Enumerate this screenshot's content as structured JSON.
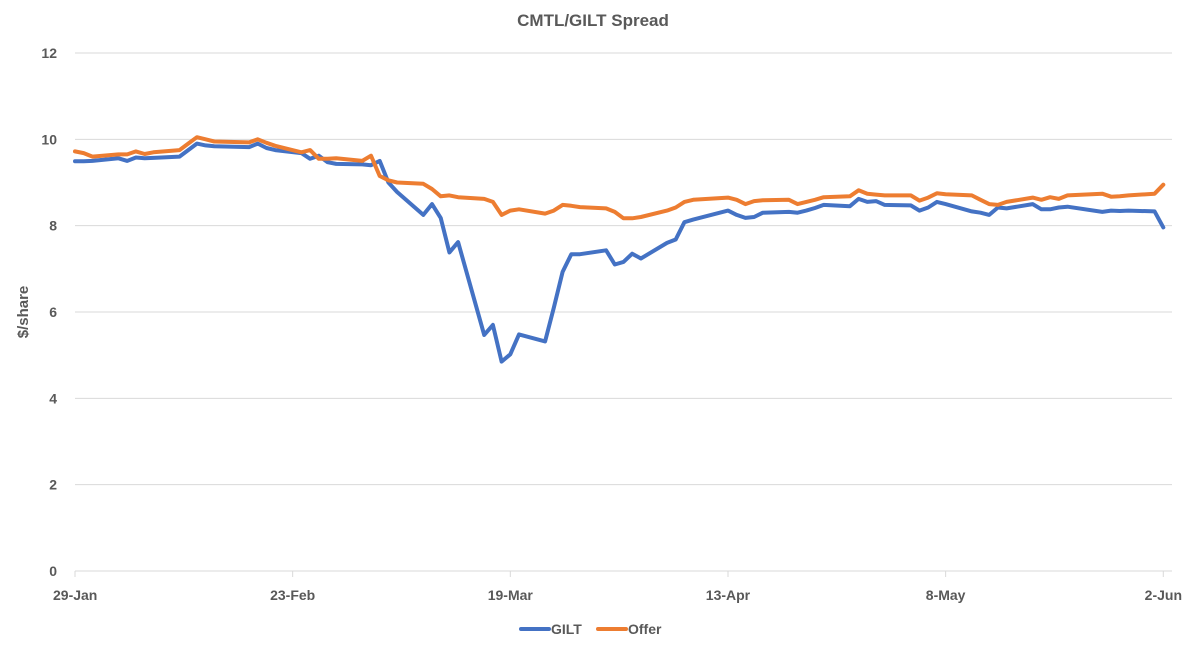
{
  "chart_data": {
    "type": "line",
    "title": "CMTL/GILT Spread",
    "xlabel": "",
    "ylabel": "$/share",
    "ylim": [
      0,
      12
    ],
    "yticks": [
      0,
      2,
      4,
      6,
      8,
      10,
      12
    ],
    "xticks": [
      "29-Jan",
      "23-Feb",
      "19-Mar",
      "13-Apr",
      "8-May",
      "2-Jun"
    ],
    "grid": "horizontal",
    "legend_position": "bottom",
    "colors": {
      "GILT": "#4472C4",
      "Offer": "#ED7D31",
      "grid": "#D9D9D9",
      "text": "#595959"
    },
    "series": [
      {
        "name": "GILT",
        "color": "#4472C4",
        "x": [
          "29-Jan",
          "30-Jan",
          "31-Jan",
          "3-Feb",
          "4-Feb",
          "5-Feb",
          "6-Feb",
          "7-Feb",
          "10-Feb",
          "11-Feb",
          "12-Feb",
          "13-Feb",
          "14-Feb",
          "18-Feb",
          "19-Feb",
          "20-Feb",
          "21-Feb",
          "24-Feb",
          "25-Feb",
          "26-Feb",
          "27-Feb",
          "28-Feb",
          "2-Mar",
          "3-Mar",
          "4-Mar",
          "5-Mar",
          "6-Mar",
          "9-Mar",
          "10-Mar",
          "11-Mar",
          "12-Mar",
          "13-Mar",
          "16-Mar",
          "17-Mar",
          "18-Mar",
          "19-Mar",
          "20-Mar",
          "23-Mar",
          "24-Mar",
          "25-Mar",
          "26-Mar",
          "27-Mar",
          "30-Mar",
          "31-Mar",
          "1-Apr",
          "2-Apr",
          "3-Apr",
          "6-Apr",
          "7-Apr",
          "8-Apr",
          "9-Apr",
          "13-Apr",
          "14-Apr",
          "15-Apr",
          "16-Apr",
          "17-Apr",
          "20-Apr",
          "21-Apr",
          "22-Apr",
          "23-Apr",
          "24-Apr",
          "27-Apr",
          "28-Apr",
          "29-Apr",
          "30-Apr",
          "1-May",
          "4-May",
          "5-May",
          "6-May",
          "7-May",
          "8-May",
          "11-May",
          "12-May",
          "13-May",
          "14-May",
          "15-May",
          "18-May",
          "19-May",
          "20-May",
          "21-May",
          "22-May",
          "26-May",
          "27-May",
          "28-May",
          "29-May",
          "1-Jun",
          "2-Jun"
        ],
        "values": [
          9.49,
          9.49,
          9.5,
          9.56,
          9.5,
          9.58,
          9.56,
          9.57,
          9.6,
          9.75,
          9.9,
          9.86,
          9.84,
          9.82,
          9.9,
          9.8,
          9.75,
          9.68,
          9.55,
          9.62,
          9.47,
          9.43,
          9.42,
          9.4,
          9.5,
          9.0,
          8.78,
          8.25,
          8.5,
          8.18,
          7.38,
          7.62,
          5.47,
          5.7,
          4.85,
          5.02,
          5.48,
          5.32,
          6.1,
          6.93,
          7.34,
          7.34,
          7.43,
          7.1,
          7.16,
          7.35,
          7.24,
          7.6,
          7.68,
          8.08,
          8.14,
          8.35,
          8.25,
          8.18,
          8.2,
          8.3,
          8.32,
          8.3,
          8.35,
          8.41,
          8.48,
          8.45,
          8.62,
          8.55,
          8.57,
          8.48,
          8.47,
          8.35,
          8.42,
          8.55,
          8.5,
          8.33,
          8.3,
          8.25,
          8.42,
          8.4,
          8.5,
          8.38,
          8.38,
          8.42,
          8.44,
          8.32,
          8.35,
          8.34,
          8.35,
          8.33,
          7.96
        ]
      },
      {
        "name": "Offer",
        "color": "#ED7D31",
        "x": [
          "29-Jan",
          "30-Jan",
          "31-Jan",
          "3-Feb",
          "4-Feb",
          "5-Feb",
          "6-Feb",
          "7-Feb",
          "10-Feb",
          "11-Feb",
          "12-Feb",
          "13-Feb",
          "14-Feb",
          "18-Feb",
          "19-Feb",
          "20-Feb",
          "21-Feb",
          "24-Feb",
          "25-Feb",
          "26-Feb",
          "27-Feb",
          "28-Feb",
          "2-Mar",
          "3-Mar",
          "4-Mar",
          "5-Mar",
          "6-Mar",
          "9-Mar",
          "10-Mar",
          "11-Mar",
          "12-Mar",
          "13-Mar",
          "16-Mar",
          "17-Mar",
          "18-Mar",
          "19-Mar",
          "20-Mar",
          "23-Mar",
          "24-Mar",
          "25-Mar",
          "26-Mar",
          "27-Mar",
          "30-Mar",
          "31-Mar",
          "1-Apr",
          "2-Apr",
          "3-Apr",
          "6-Apr",
          "7-Apr",
          "8-Apr",
          "9-Apr",
          "13-Apr",
          "14-Apr",
          "15-Apr",
          "16-Apr",
          "17-Apr",
          "20-Apr",
          "21-Apr",
          "22-Apr",
          "23-Apr",
          "24-Apr",
          "27-Apr",
          "28-Apr",
          "29-Apr",
          "30-Apr",
          "1-May",
          "4-May",
          "5-May",
          "6-May",
          "7-May",
          "8-May",
          "11-May",
          "12-May",
          "13-May",
          "14-May",
          "15-May",
          "18-May",
          "19-May",
          "20-May",
          "21-May",
          "22-May",
          "26-May",
          "27-May",
          "28-May",
          "29-May",
          "1-Jun",
          "2-Jun"
        ],
        "values": [
          9.72,
          9.68,
          9.6,
          9.65,
          9.65,
          9.72,
          9.66,
          9.7,
          9.75,
          9.9,
          10.05,
          10.0,
          9.95,
          9.93,
          10.0,
          9.92,
          9.85,
          9.7,
          9.75,
          9.55,
          9.55,
          9.56,
          9.5,
          9.62,
          9.15,
          9.05,
          9.0,
          8.97,
          8.85,
          8.68,
          8.7,
          8.66,
          8.62,
          8.55,
          8.25,
          8.35,
          8.38,
          8.28,
          8.35,
          8.48,
          8.46,
          8.43,
          8.4,
          8.32,
          8.17,
          8.17,
          8.2,
          8.35,
          8.42,
          8.55,
          8.6,
          8.65,
          8.6,
          8.5,
          8.57,
          8.59,
          8.6,
          8.5,
          8.55,
          8.6,
          8.66,
          8.68,
          8.82,
          8.74,
          8.72,
          8.7,
          8.7,
          8.58,
          8.65,
          8.75,
          8.73,
          8.7,
          8.6,
          8.5,
          8.48,
          8.55,
          8.65,
          8.6,
          8.66,
          8.62,
          8.7,
          8.74,
          8.67,
          8.68,
          8.7,
          8.74,
          8.95
        ]
      }
    ]
  }
}
